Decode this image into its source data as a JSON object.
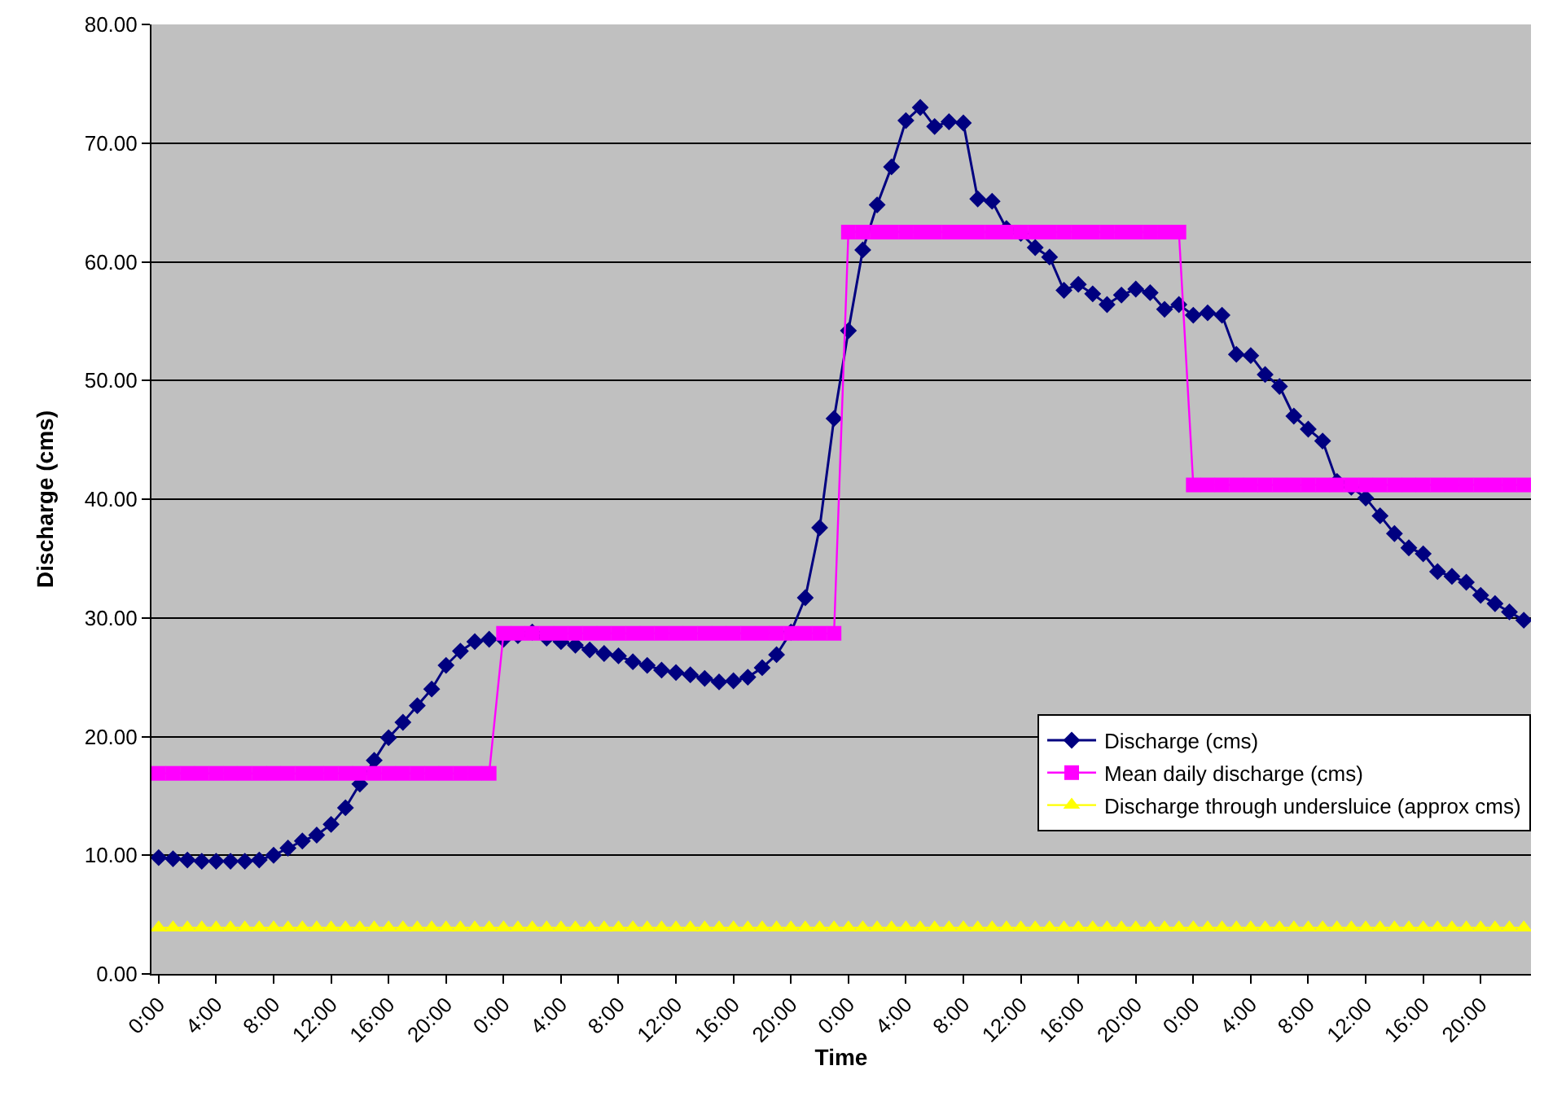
{
  "chart_data": {
    "type": "line",
    "xlabel": "Time",
    "ylabel": "Discharge (cms)",
    "categories": [
      "0:00",
      null,
      null,
      null,
      "4:00",
      null,
      null,
      null,
      "8:00",
      null,
      null,
      null,
      "12:00",
      null,
      null,
      null,
      "16:00",
      null,
      null,
      null,
      "20:00",
      null,
      null,
      null,
      "0:00",
      null,
      null,
      null,
      "4:00",
      null,
      null,
      null,
      "8:00",
      null,
      null,
      null,
      "12:00",
      null,
      null,
      null,
      "16:00",
      null,
      null,
      null,
      "20:00",
      null,
      null,
      null,
      "0:00",
      null,
      null,
      null,
      "4:00",
      null,
      null,
      null,
      "8:00",
      null,
      null,
      null,
      "12:00",
      null,
      null,
      null,
      "16:00",
      null,
      null,
      null,
      "20:00",
      null,
      null,
      null,
      "0:00",
      null,
      null,
      null,
      "4:00",
      null,
      null,
      null,
      "8:00",
      null,
      null,
      null,
      "12:00",
      null,
      null,
      null,
      "16:00",
      null,
      null,
      null,
      "20:00",
      null,
      null,
      null
    ],
    "series": [
      {
        "name": "Discharge (cms)",
        "color": "#000080",
        "marker": "diamond",
        "values": [
          9.8,
          9.7,
          9.6,
          9.5,
          9.5,
          9.5,
          9.5,
          9.6,
          10.0,
          10.6,
          11.2,
          11.7,
          12.6,
          14.0,
          16.0,
          18.0,
          19.9,
          21.2,
          22.6,
          24.0,
          26.0,
          27.2,
          28.0,
          28.2,
          28.2,
          28.5,
          28.8,
          28.3,
          28.0,
          27.7,
          27.3,
          27.0,
          26.8,
          26.3,
          26.0,
          25.6,
          25.4,
          25.2,
          24.9,
          24.6,
          24.7,
          25.0,
          25.8,
          26.9,
          28.8,
          31.7,
          37.6,
          46.8,
          54.2,
          61.0,
          64.8,
          68.0,
          71.9,
          73.0,
          71.4,
          71.8,
          71.7,
          65.3,
          65.1,
          62.8,
          62.4,
          61.2,
          60.4,
          57.6,
          58.1,
          57.3,
          56.4,
          57.2,
          57.7,
          57.4,
          56.0,
          56.4,
          55.5,
          55.7,
          55.5,
          52.2,
          52.1,
          50.5,
          49.5,
          47.0,
          45.9,
          44.9,
          41.5,
          41.0,
          40.1,
          38.6,
          37.1,
          35.9,
          35.4,
          33.9,
          33.5,
          33.0,
          31.9,
          31.2,
          30.5,
          29.8
        ]
      },
      {
        "name": "Mean daily discharge (cms)",
        "color": "#ff00ff",
        "marker": "square",
        "values": [
          16.9,
          16.9,
          16.9,
          16.9,
          16.9,
          16.9,
          16.9,
          16.9,
          16.9,
          16.9,
          16.9,
          16.9,
          16.9,
          16.9,
          16.9,
          16.9,
          16.9,
          16.9,
          16.9,
          16.9,
          16.9,
          16.9,
          16.9,
          16.9,
          28.7,
          28.7,
          28.7,
          28.7,
          28.7,
          28.7,
          28.7,
          28.7,
          28.7,
          28.7,
          28.7,
          28.7,
          28.7,
          28.7,
          28.7,
          28.7,
          28.7,
          28.7,
          28.7,
          28.7,
          28.7,
          28.7,
          28.7,
          28.7,
          62.5,
          62.5,
          62.5,
          62.5,
          62.5,
          62.5,
          62.5,
          62.5,
          62.5,
          62.5,
          62.5,
          62.5,
          62.5,
          62.5,
          62.5,
          62.5,
          62.5,
          62.5,
          62.5,
          62.5,
          62.5,
          62.5,
          62.5,
          62.5,
          41.2,
          41.2,
          41.2,
          41.2,
          41.2,
          41.2,
          41.2,
          41.2,
          41.2,
          41.2,
          41.2,
          41.2,
          41.2,
          41.2,
          41.2,
          41.2,
          41.2,
          41.2,
          41.2,
          41.2,
          41.2,
          41.2,
          41.2,
          41.2
        ]
      },
      {
        "name": "Discharge through undersluice (approx cms)",
        "color": "#ffff00",
        "marker": "triangle",
        "values": [
          3.9,
          3.9,
          3.9,
          3.9,
          3.9,
          3.9,
          3.9,
          3.9,
          3.9,
          3.9,
          3.9,
          3.9,
          3.9,
          3.9,
          3.9,
          3.9,
          3.9,
          3.9,
          3.9,
          3.9,
          3.9,
          3.9,
          3.9,
          3.9,
          3.9,
          3.9,
          3.9,
          3.9,
          3.9,
          3.9,
          3.9,
          3.9,
          3.9,
          3.9,
          3.9,
          3.9,
          3.9,
          3.9,
          3.9,
          3.9,
          3.9,
          3.9,
          3.9,
          3.9,
          3.9,
          3.9,
          3.9,
          3.9,
          3.9,
          3.9,
          3.9,
          3.9,
          3.9,
          3.9,
          3.9,
          3.9,
          3.9,
          3.9,
          3.9,
          3.9,
          3.9,
          3.9,
          3.9,
          3.9,
          3.9,
          3.9,
          3.9,
          3.9,
          3.9,
          3.9,
          3.9,
          3.9,
          3.9,
          3.9,
          3.9,
          3.9,
          3.9,
          3.9,
          3.9,
          3.9,
          3.9,
          3.9,
          3.9,
          3.9,
          3.9,
          3.9,
          3.9,
          3.9,
          3.9,
          3.9,
          3.9,
          3.9,
          3.9,
          3.9,
          3.9,
          3.9
        ]
      }
    ],
    "ylim": [
      0,
      80
    ],
    "yticks": [
      {
        "value": 0,
        "label": "0.00"
      },
      {
        "value": 10,
        "label": "10.00"
      },
      {
        "value": 20,
        "label": "20.00"
      },
      {
        "value": 30,
        "label": "30.00"
      },
      {
        "value": 40,
        "label": "40.00"
      },
      {
        "value": 50,
        "label": "50.00"
      },
      {
        "value": 60,
        "label": "60.00"
      },
      {
        "value": 70,
        "label": "70.00"
      },
      {
        "value": 80,
        "label": "80.00"
      }
    ],
    "grid": "y",
    "legend": "bottom right"
  }
}
